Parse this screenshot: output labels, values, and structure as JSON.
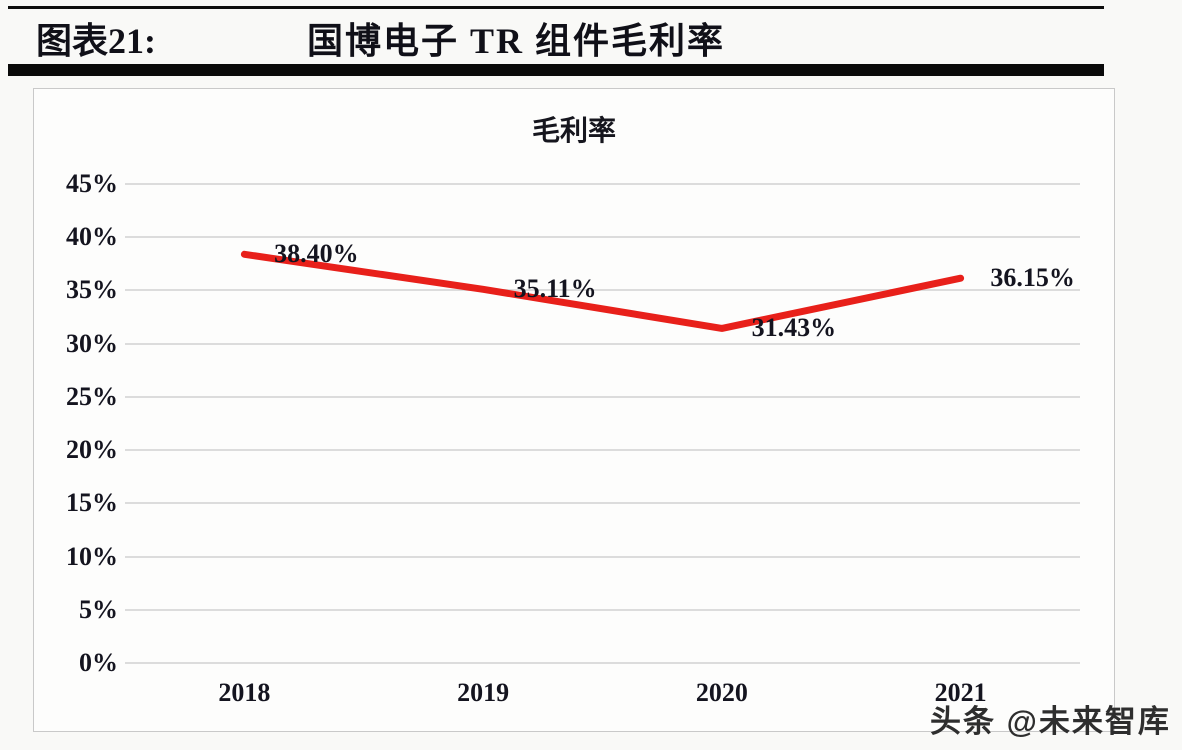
{
  "header": {
    "figure_label": "图表21:",
    "figure_title": "国博电子 TR 组件毛利率"
  },
  "watermark": "头条 @未来智库",
  "colors": {
    "line": "#e8201a",
    "text": "#14141f",
    "gridline": "#dcdcdc",
    "rule": "#0a0a0a",
    "frame_border": "#c9c9c9"
  },
  "chart_data": {
    "type": "line",
    "title": "毛利率",
    "categories": [
      "2018",
      "2019",
      "2020",
      "2021"
    ],
    "series": [
      {
        "name": "毛利率",
        "values": [
          38.4,
          35.11,
          31.43,
          36.15
        ],
        "labels": [
          "38.40%",
          "35.11%",
          "31.43%",
          "36.15%"
        ],
        "color": "#e8201a"
      }
    ],
    "ylim": [
      0,
      45
    ],
    "ytick_step": 5,
    "ytick_labels": [
      "0%",
      "5%",
      "10%",
      "15%",
      "20%",
      "25%",
      "30%",
      "35%",
      "40%",
      "45%"
    ],
    "xlabel": "",
    "ylabel": "",
    "grid": true,
    "legend": false,
    "data_label_position": "right"
  }
}
